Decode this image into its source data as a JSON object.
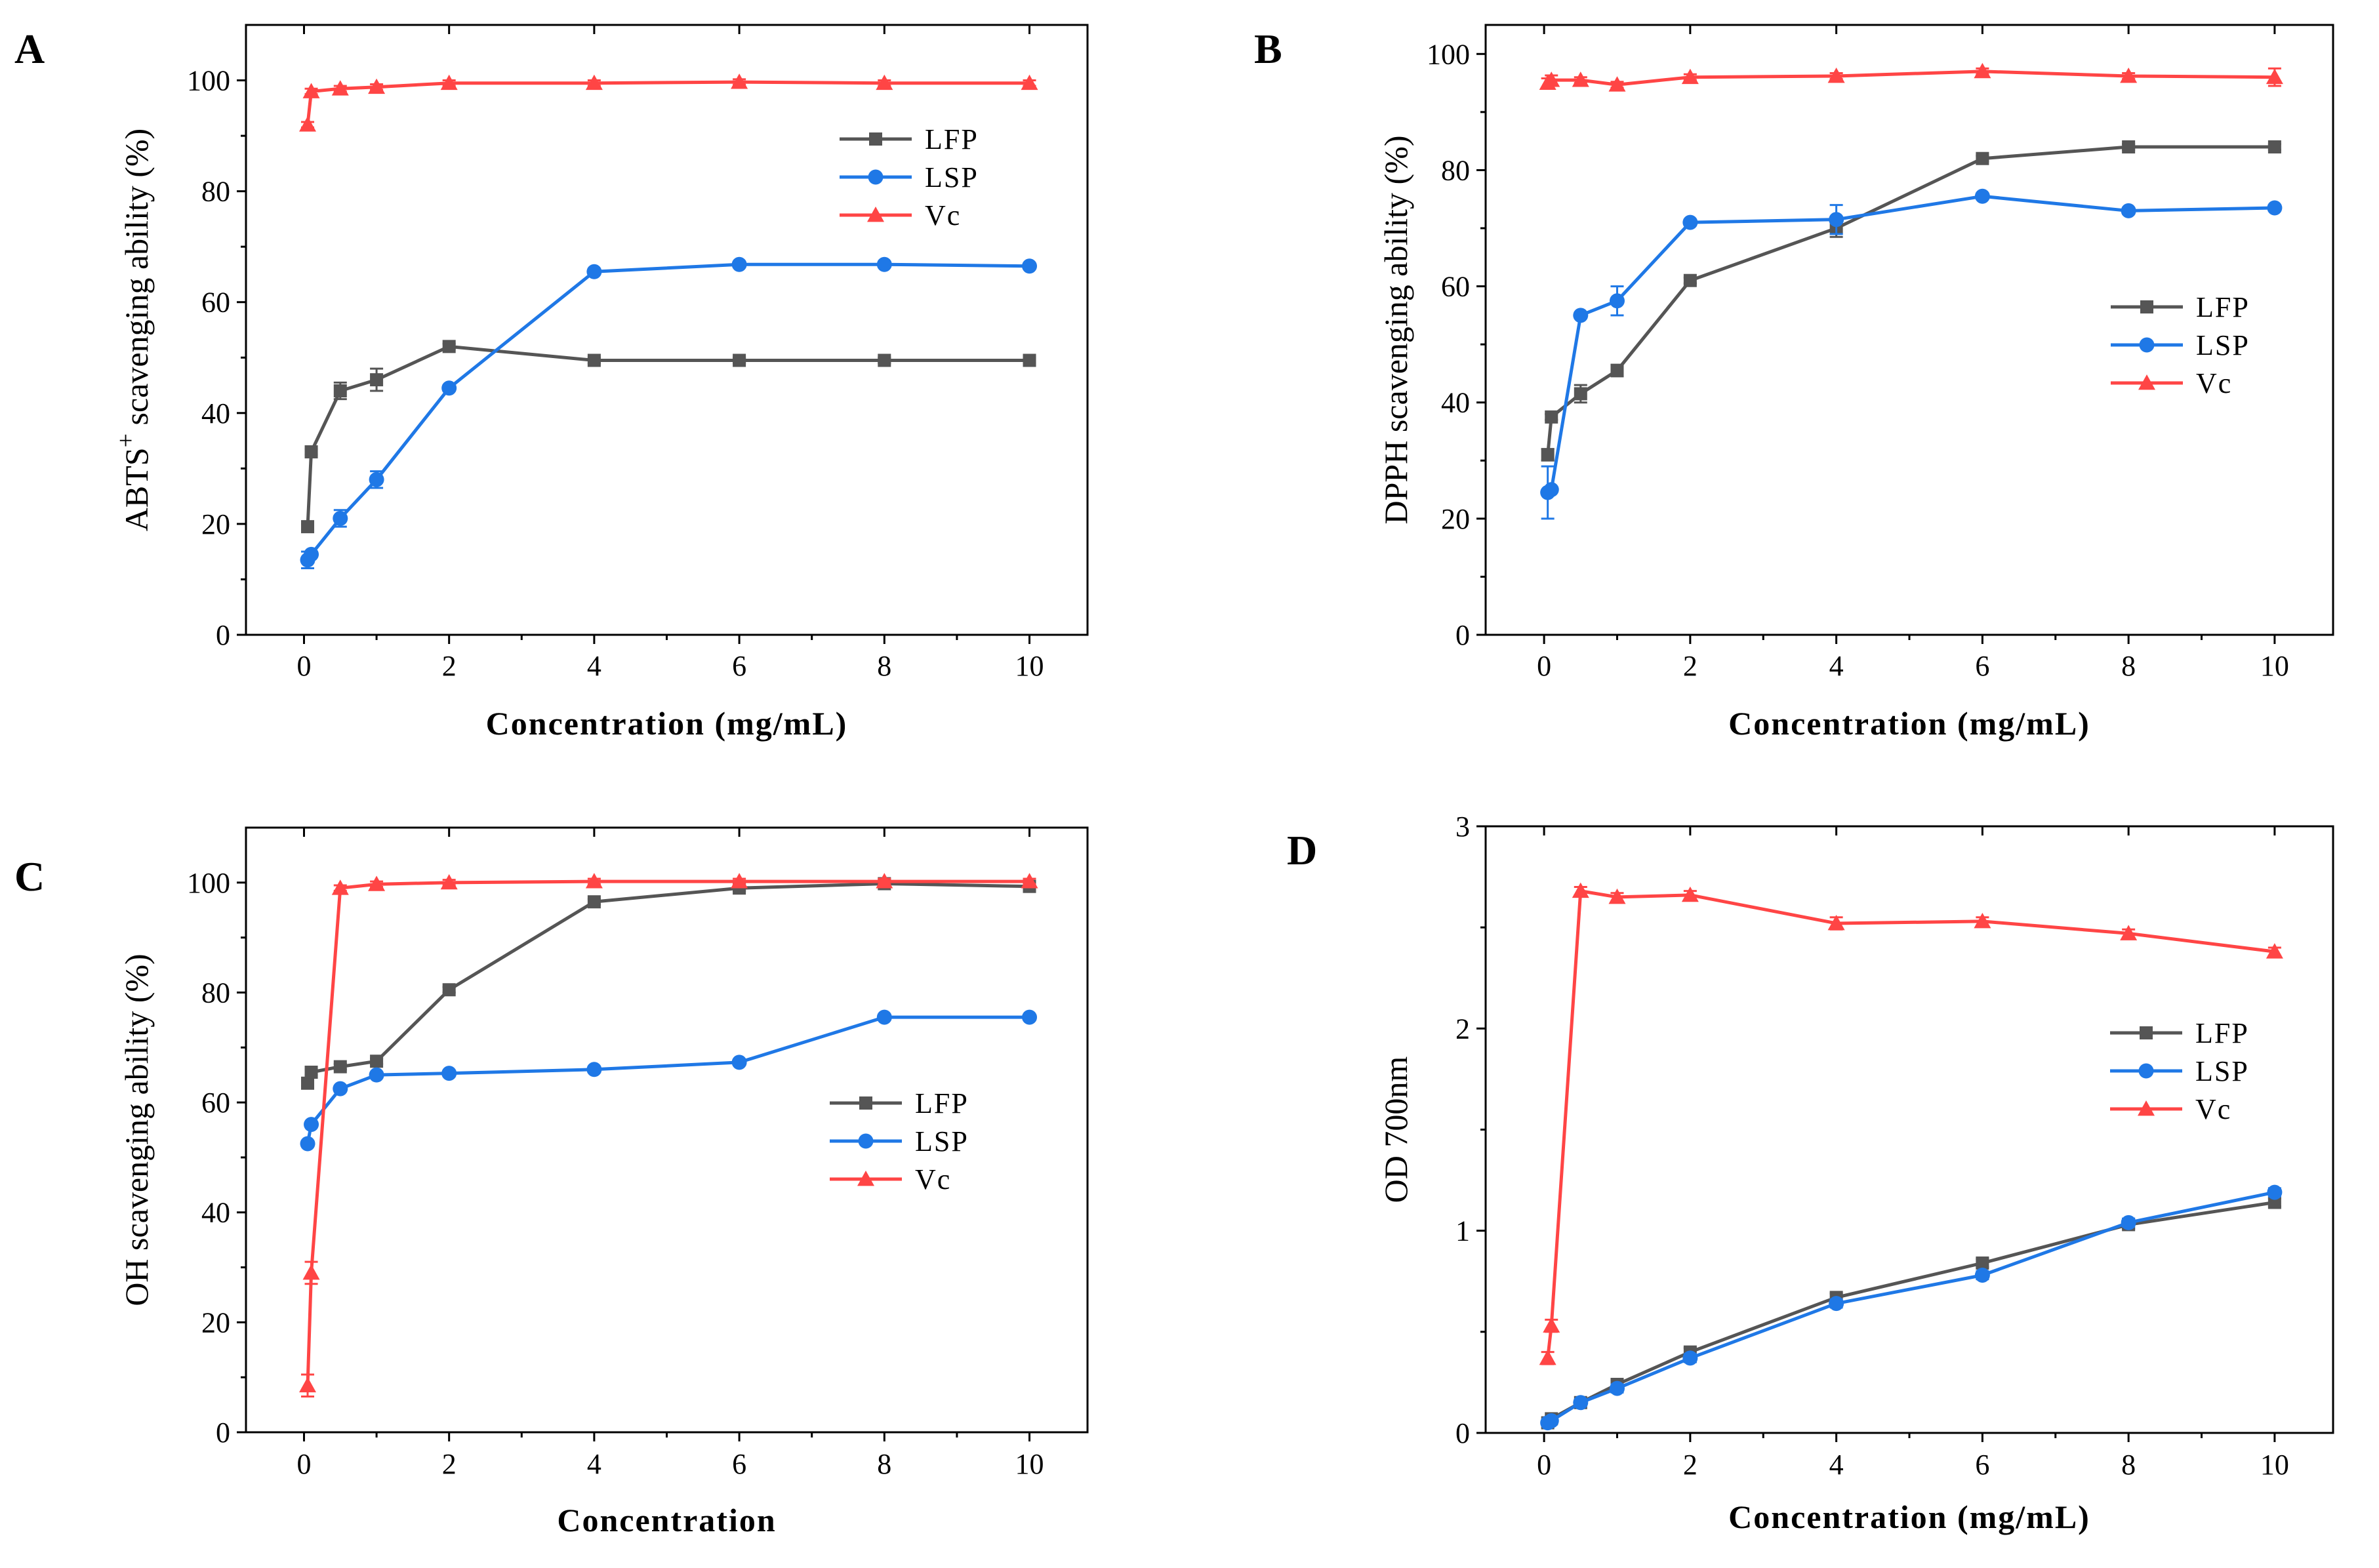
{
  "colors": {
    "LFP": "#555555",
    "LSP": "#1f78e6",
    "Vc": "#ff4545"
  },
  "chart_data": [
    {
      "panel": "A",
      "type": "line",
      "ylabel_main": "ABTS",
      "ylabel_sup": "+",
      "ylabel_rest": " scavenging ability (%)",
      "xlabel": "Concentration (mg/mL)",
      "xlim": [
        -0.8,
        10.8
      ],
      "ylim": [
        0,
        110
      ],
      "xticks": [
        0,
        2,
        4,
        6,
        8,
        10
      ],
      "yticks": [
        0,
        20,
        40,
        60,
        80,
        100
      ],
      "legend_position": "top-right",
      "series": [
        {
          "name": "LFP",
          "marker": "square",
          "x": [
            0.05,
            0.1,
            0.5,
            1,
            2,
            4,
            6,
            8,
            10
          ],
          "y": [
            19.5,
            33,
            44,
            46,
            52,
            49.5,
            49.5,
            49.5,
            49.5
          ],
          "err": [
            0.5,
            0.5,
            1.5,
            2,
            0.5,
            0.5,
            0.5,
            0.5,
            0.5
          ]
        },
        {
          "name": "LSP",
          "marker": "circle",
          "x": [
            0.05,
            0.1,
            0.5,
            1,
            2,
            4,
            6,
            8,
            10
          ],
          "y": [
            13.5,
            14.5,
            21,
            28,
            44.5,
            65.5,
            66.8,
            66.8,
            66.5
          ],
          "err": [
            1.5,
            0.5,
            1.5,
            1.5,
            0.5,
            0.5,
            0.5,
            0.5,
            0.5
          ]
        },
        {
          "name": "Vc",
          "marker": "triangle",
          "x": [
            0.05,
            0.1,
            0.5,
            1,
            2,
            4,
            6,
            8,
            10
          ],
          "y": [
            92,
            98,
            98.5,
            98.8,
            99.5,
            99.5,
            99.7,
            99.5,
            99.5
          ],
          "err": [
            0.5,
            0.5,
            0.5,
            0.5,
            0.5,
            0.5,
            0.5,
            0.5,
            0.5
          ]
        }
      ]
    },
    {
      "panel": "B",
      "type": "line",
      "ylabel_main": "DPPH scavenging ability (%)",
      "ylabel_sup": "",
      "ylabel_rest": "",
      "xlabel": "Concentration (mg/mL)",
      "xlim": [
        -0.8,
        10.8
      ],
      "ylim": [
        0,
        105
      ],
      "xticks": [
        0,
        2,
        4,
        6,
        8,
        10
      ],
      "yticks": [
        0,
        20,
        40,
        60,
        80,
        100
      ],
      "legend_position": "center-right",
      "series": [
        {
          "name": "LFP",
          "marker": "square",
          "x": [
            0.05,
            0.1,
            0.5,
            1,
            2,
            4,
            6,
            8,
            10
          ],
          "y": [
            31,
            37.5,
            41.5,
            45.5,
            61,
            70,
            82,
            84,
            84
          ],
          "err": [
            1,
            0.5,
            1.5,
            1,
            0.5,
            1.5,
            0.5,
            0.5,
            0.5
          ]
        },
        {
          "name": "LSP",
          "marker": "circle",
          "x": [
            0.05,
            0.1,
            0.5,
            1,
            2,
            4,
            6,
            8,
            10
          ],
          "y": [
            24.5,
            25,
            55,
            57.5,
            71,
            71.5,
            75.5,
            73,
            73.5
          ],
          "err": [
            4.5,
            0.5,
            0.5,
            2.5,
            0.5,
            2.5,
            0.5,
            0.5,
            0.5
          ]
        },
        {
          "name": "Vc",
          "marker": "triangle",
          "x": [
            0.05,
            0.1,
            0.5,
            1,
            2,
            4,
            6,
            8,
            10
          ],
          "y": [
            95,
            95.5,
            95.5,
            94.7,
            96,
            96.2,
            97,
            96.2,
            96
          ],
          "err": [
            0.8,
            0.8,
            0.5,
            0.5,
            0.5,
            0.5,
            0.5,
            0.5,
            1.5
          ]
        }
      ]
    },
    {
      "panel": "C",
      "type": "line",
      "ylabel_main": "OH scavenging ability (%)",
      "ylabel_sup": "",
      "ylabel_rest": "",
      "xlabel": "Concentration",
      "xlim": [
        -0.8,
        10.8
      ],
      "ylim": [
        0,
        110
      ],
      "xticks": [
        0,
        2,
        4,
        6,
        8,
        10
      ],
      "yticks": [
        0,
        20,
        40,
        60,
        80,
        100
      ],
      "legend_position": "center-right",
      "series": [
        {
          "name": "LFP",
          "marker": "square",
          "x": [
            0.05,
            0.1,
            0.5,
            1,
            2,
            4,
            6,
            8,
            10
          ],
          "y": [
            63.5,
            65.5,
            66.5,
            67.5,
            80.5,
            96.5,
            99,
            99.8,
            99.3
          ],
          "err": [
            0.5,
            0.5,
            0.5,
            0.5,
            0.5,
            0.5,
            0.5,
            0.5,
            0.5
          ]
        },
        {
          "name": "LSP",
          "marker": "circle",
          "x": [
            0.05,
            0.1,
            0.5,
            1,
            2,
            4,
            6,
            8,
            10
          ],
          "y": [
            52.5,
            56,
            62.5,
            65,
            65.3,
            66,
            67.3,
            75.5,
            75.5
          ],
          "err": [
            0.5,
            0.5,
            0.5,
            0.5,
            0.5,
            0.5,
            0.5,
            0.5,
            0.5
          ]
        },
        {
          "name": "Vc",
          "marker": "triangle",
          "x": [
            0.05,
            0.1,
            0.5,
            1,
            2,
            4,
            6,
            8,
            10
          ],
          "y": [
            8.5,
            29,
            99,
            99.7,
            100,
            100.2,
            100.2,
            100.2,
            100.2
          ],
          "err": [
            2,
            2,
            0.5,
            0.5,
            0.5,
            0.5,
            0.5,
            0.5,
            0.5
          ]
        }
      ]
    },
    {
      "panel": "D",
      "type": "line",
      "ylabel_main": "OD 700nm",
      "ylabel_sup": "",
      "ylabel_rest": "",
      "xlabel": "Concentration (mg/mL)",
      "xlim": [
        -0.8,
        10.8
      ],
      "ylim": [
        0,
        3
      ],
      "xticks": [
        0,
        2,
        4,
        6,
        8,
        10
      ],
      "yticks": [
        0,
        1,
        2,
        3
      ],
      "legend_position": "center-right",
      "series": [
        {
          "name": "LFP",
          "marker": "square",
          "x": [
            0.05,
            0.1,
            0.5,
            1,
            2,
            4,
            6,
            8,
            10
          ],
          "y": [
            0.05,
            0.07,
            0.15,
            0.24,
            0.4,
            0.67,
            0.84,
            1.03,
            1.14
          ],
          "err": [
            0.01,
            0.01,
            0.01,
            0.02,
            0.02,
            0.02,
            0.02,
            0.02,
            0.02
          ]
        },
        {
          "name": "LSP",
          "marker": "circle",
          "x": [
            0.05,
            0.1,
            0.5,
            1,
            2,
            4,
            6,
            8,
            10
          ],
          "y": [
            0.05,
            0.06,
            0.15,
            0.22,
            0.37,
            0.64,
            0.78,
            1.04,
            1.19
          ],
          "err": [
            0.01,
            0.01,
            0.01,
            0.02,
            0.02,
            0.02,
            0.02,
            0.02,
            0.02
          ]
        },
        {
          "name": "Vc",
          "marker": "triangle",
          "x": [
            0.05,
            0.1,
            0.5,
            1,
            2,
            4,
            6,
            8,
            10
          ],
          "y": [
            0.37,
            0.53,
            2.68,
            2.65,
            2.66,
            2.52,
            2.53,
            2.47,
            2.38
          ],
          "err": [
            0.03,
            0.03,
            0.02,
            0.02,
            0.02,
            0.03,
            0.02,
            0.02,
            0.02
          ]
        }
      ]
    }
  ]
}
